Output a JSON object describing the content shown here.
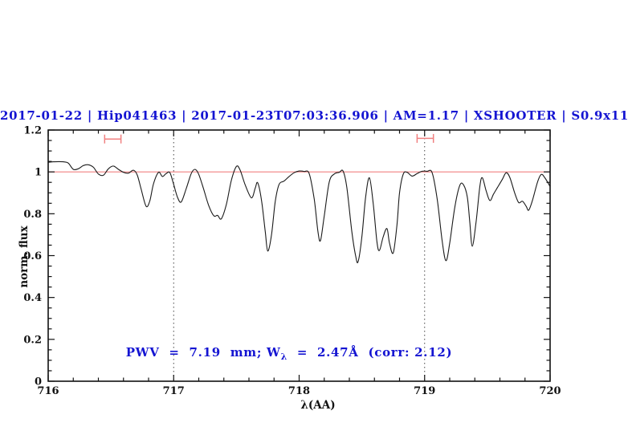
{
  "title": "2017-01-22 | Hip041463 | 2017-01-23T07:03:36.906 | AM=1.17 | XSHOOTER | S0.9x11",
  "title_color": "#1414d2",
  "annotation": {
    "prefix": "PWV  =  7.19  mm; W",
    "sub": "λ",
    "suffix": "  =  2.47Å  (corr: 2.12)",
    "color": "#1414d2"
  },
  "chart_data": {
    "type": "line",
    "title": "2017-01-22 | Hip041463 | 2017-01-23T07:03:36.906 | AM=1.17 | XSHOOTER | S0.9x11",
    "xlabel": "λ(AA)",
    "ylabel": "norm. flux",
    "xlim": [
      716,
      720
    ],
    "ylim": [
      0,
      1.2
    ],
    "grid": false,
    "legend": "none",
    "x_major_ticks": [
      716,
      717,
      718,
      719,
      720
    ],
    "x_tick_labels": [
      "716",
      "717",
      "718",
      "719",
      "720"
    ],
    "x_minor_step": 0.2,
    "y_major_ticks": [
      0,
      0.2,
      0.4,
      0.6,
      0.8,
      1,
      1.2
    ],
    "y_tick_labels": [
      "0",
      "0.2",
      "0.4",
      "0.6",
      "0.8",
      "1",
      "1.2"
    ],
    "y_minor_step": 0.05,
    "series": [
      {
        "name": "observed-telluric-spectrum",
        "color": "#1a1a1a",
        "x": [
          716.0,
          716.04,
          716.08,
          716.12,
          716.16,
          716.2,
          716.24,
          716.28,
          716.32,
          716.36,
          716.4,
          716.44,
          716.48,
          716.52,
          716.56,
          716.6,
          716.64,
          716.68,
          716.71,
          716.74,
          716.78,
          716.81,
          716.84,
          716.88,
          716.91,
          716.94,
          716.97,
          717.0,
          717.03,
          717.06,
          717.1,
          717.14,
          717.17,
          717.2,
          717.24,
          717.28,
          717.32,
          717.35,
          717.38,
          717.42,
          717.46,
          717.5,
          717.53,
          717.57,
          717.62,
          717.65,
          717.67,
          717.7,
          717.73,
          717.75,
          717.78,
          717.81,
          717.84,
          717.88,
          717.92,
          717.96,
          718.0,
          718.04,
          718.08,
          718.12,
          718.15,
          718.17,
          718.2,
          718.24,
          718.28,
          718.32,
          718.35,
          718.38,
          718.42,
          718.45,
          718.47,
          718.5,
          718.53,
          718.56,
          718.59,
          718.62,
          718.64,
          718.67,
          718.7,
          718.72,
          718.75,
          718.78,
          718.8,
          718.83,
          718.86,
          718.9,
          718.94,
          718.98,
          719.02,
          719.06,
          719.1,
          719.14,
          719.17,
          719.2,
          719.24,
          719.28,
          719.31,
          719.34,
          719.36,
          719.38,
          719.41,
          719.44,
          719.46,
          719.49,
          719.52,
          719.55,
          719.58,
          719.62,
          719.65,
          719.68,
          719.72,
          719.75,
          719.78,
          719.81,
          719.83,
          719.86,
          719.9,
          719.93,
          719.96,
          720.0
        ],
        "y": [
          1.046,
          1.048,
          1.049,
          1.048,
          1.042,
          1.012,
          1.015,
          1.03,
          1.034,
          1.022,
          0.99,
          0.984,
          1.015,
          1.028,
          1.012,
          0.998,
          0.994,
          1.008,
          0.985,
          0.92,
          0.836,
          0.862,
          0.945,
          0.998,
          0.978,
          0.992,
          0.996,
          0.94,
          0.88,
          0.856,
          0.92,
          0.992,
          1.012,
          0.988,
          0.915,
          0.838,
          0.79,
          0.792,
          0.776,
          0.845,
          0.96,
          1.026,
          1.008,
          0.938,
          0.876,
          0.922,
          0.948,
          0.865,
          0.715,
          0.622,
          0.7,
          0.86,
          0.94,
          0.956,
          0.978,
          0.996,
          1.004,
          1.002,
          0.992,
          0.87,
          0.715,
          0.672,
          0.79,
          0.952,
          0.99,
          0.998,
          1.004,
          0.925,
          0.715,
          0.6,
          0.571,
          0.69,
          0.88,
          0.972,
          0.85,
          0.665,
          0.625,
          0.69,
          0.729,
          0.66,
          0.613,
          0.75,
          0.9,
          0.99,
          0.998,
          0.98,
          0.992,
          1.003,
          1.003,
          0.996,
          0.87,
          0.67,
          0.576,
          0.66,
          0.83,
          0.935,
          0.938,
          0.88,
          0.76,
          0.645,
          0.76,
          0.93,
          0.972,
          0.91,
          0.863,
          0.895,
          0.925,
          0.965,
          0.996,
          0.972,
          0.895,
          0.853,
          0.86,
          0.835,
          0.817,
          0.865,
          0.952,
          0.988,
          0.97,
          0.93
        ]
      }
    ],
    "reference_line": {
      "y": 1.0,
      "color": "#f08080"
    },
    "dotted_vlines": {
      "x": [
        717,
        719
      ],
      "color": "#444444"
    },
    "range_markers": [
      {
        "x1": 716.45,
        "x2": 716.58,
        "y": 1.157,
        "color": "#f08080"
      },
      {
        "x1": 718.94,
        "x2": 719.07,
        "y": 1.16,
        "color": "#f08080"
      }
    ]
  }
}
